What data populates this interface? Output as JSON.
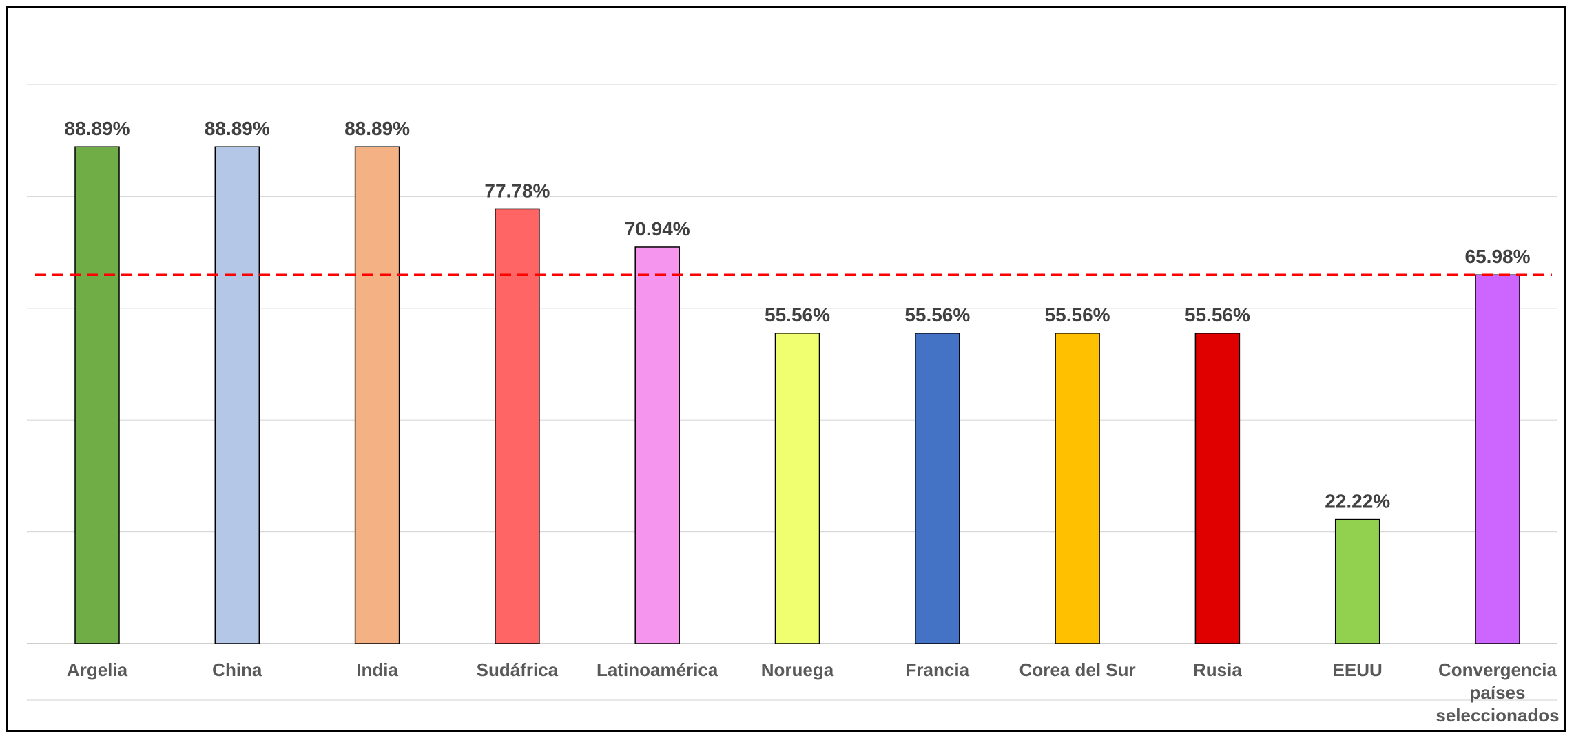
{
  "chart_data": {
    "type": "bar",
    "title": "",
    "xlabel": "",
    "ylabel": "",
    "ylim": [
      0,
      100
    ],
    "grid": true,
    "legend": "none",
    "categories": [
      [
        "Argelia"
      ],
      [
        "China"
      ],
      [
        "India"
      ],
      [
        "Sudáfrica"
      ],
      [
        "Latinoamérica"
      ],
      [
        "Noruega"
      ],
      [
        "Francia"
      ],
      [
        "Corea del Sur"
      ],
      [
        "Rusia"
      ],
      [
        "EEUU"
      ],
      [
        "Convergencia",
        "países",
        "seleccionados"
      ]
    ],
    "values": [
      88.89,
      88.89,
      88.89,
      77.78,
      70.94,
      55.56,
      55.56,
      55.56,
      55.56,
      22.22,
      65.98
    ],
    "value_labels": [
      "88.89%",
      "88.89%",
      "88.89%",
      "77.78%",
      "70.94%",
      "55.56%",
      "55.56%",
      "55.56%",
      "55.56%",
      "22.22%",
      "65.98%"
    ],
    "colors": [
      "#70AD47",
      "#B4C7E7",
      "#F4B183",
      "#FF6565",
      "#F595EE",
      "#F0FF70",
      "#4472C4",
      "#FFC000",
      "#E00000",
      "#92D050",
      "#CC66FF"
    ],
    "reference_line": {
      "value": 65.98,
      "color": "#FF0000",
      "style": "dashed"
    }
  }
}
